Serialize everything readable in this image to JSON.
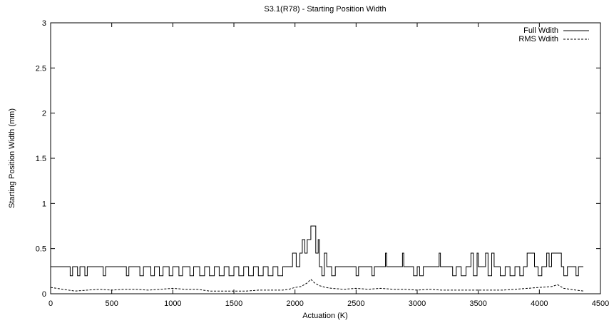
{
  "chart_data": {
    "type": "line",
    "title": "S3.1(R78) - Starting Position Width",
    "xlabel": "Actuation (K)",
    "ylabel": "Starting Position Width (mm)",
    "xlim": [
      0,
      4500
    ],
    "ylim": [
      0,
      3
    ],
    "xticks": [
      "0",
      "500",
      "1000",
      "1500",
      "2000",
      "2500",
      "3000",
      "3500",
      "4000",
      "4500"
    ],
    "yticks": [
      "0",
      "0.5",
      "1",
      "1.5",
      "2",
      "2.5",
      "3"
    ],
    "grid": false,
    "legend_position": "top-right",
    "series": [
      {
        "name": "Full Wdith",
        "style": "solid",
        "baseline": 0.3,
        "x_range": [
          0,
          4360
        ],
        "points": [
          [
            0,
            0.3
          ],
          [
            140,
            0.3
          ],
          [
            160,
            0.2
          ],
          [
            180,
            0.3
          ],
          [
            220,
            0.2
          ],
          [
            240,
            0.3
          ],
          [
            280,
            0.2
          ],
          [
            300,
            0.3
          ],
          [
            430,
            0.2
          ],
          [
            450,
            0.3
          ],
          [
            620,
            0.2
          ],
          [
            640,
            0.3
          ],
          [
            730,
            0.2
          ],
          [
            760,
            0.3
          ],
          [
            820,
            0.2
          ],
          [
            850,
            0.3
          ],
          [
            890,
            0.2
          ],
          [
            920,
            0.3
          ],
          [
            970,
            0.2
          ],
          [
            1000,
            0.3
          ],
          [
            1050,
            0.2
          ],
          [
            1080,
            0.3
          ],
          [
            1140,
            0.2
          ],
          [
            1170,
            0.3
          ],
          [
            1220,
            0.2
          ],
          [
            1260,
            0.3
          ],
          [
            1300,
            0.2
          ],
          [
            1340,
            0.3
          ],
          [
            1380,
            0.2
          ],
          [
            1420,
            0.3
          ],
          [
            1460,
            0.2
          ],
          [
            1500,
            0.3
          ],
          [
            1540,
            0.2
          ],
          [
            1580,
            0.3
          ],
          [
            1620,
            0.2
          ],
          [
            1660,
            0.3
          ],
          [
            1700,
            0.2
          ],
          [
            1740,
            0.3
          ],
          [
            1780,
            0.2
          ],
          [
            1820,
            0.3
          ],
          [
            1860,
            0.2
          ],
          [
            1900,
            0.3
          ],
          [
            1960,
            0.3
          ],
          [
            1980,
            0.45
          ],
          [
            2010,
            0.3
          ],
          [
            2040,
            0.45
          ],
          [
            2060,
            0.6
          ],
          [
            2080,
            0.45
          ],
          [
            2100,
            0.6
          ],
          [
            2130,
            0.75
          ],
          [
            2160,
            0.75
          ],
          [
            2170,
            0.45
          ],
          [
            2190,
            0.6
          ],
          [
            2200,
            0.3
          ],
          [
            2220,
            0.2
          ],
          [
            2240,
            0.45
          ],
          [
            2260,
            0.3
          ],
          [
            2300,
            0.2
          ],
          [
            2330,
            0.3
          ],
          [
            2500,
            0.2
          ],
          [
            2520,
            0.3
          ],
          [
            2630,
            0.2
          ],
          [
            2650,
            0.3
          ],
          [
            2740,
            0.45
          ],
          [
            2750,
            0.3
          ],
          [
            2880,
            0.45
          ],
          [
            2890,
            0.3
          ],
          [
            2970,
            0.2
          ],
          [
            3000,
            0.3
          ],
          [
            3020,
            0.2
          ],
          [
            3050,
            0.3
          ],
          [
            3180,
            0.45
          ],
          [
            3190,
            0.3
          ],
          [
            3290,
            0.2
          ],
          [
            3320,
            0.3
          ],
          [
            3360,
            0.2
          ],
          [
            3400,
            0.3
          ],
          [
            3440,
            0.45
          ],
          [
            3460,
            0.2
          ],
          [
            3490,
            0.45
          ],
          [
            3500,
            0.3
          ],
          [
            3560,
            0.45
          ],
          [
            3580,
            0.2
          ],
          [
            3610,
            0.45
          ],
          [
            3630,
            0.3
          ],
          [
            3680,
            0.2
          ],
          [
            3720,
            0.3
          ],
          [
            3760,
            0.2
          ],
          [
            3800,
            0.3
          ],
          [
            3840,
            0.2
          ],
          [
            3870,
            0.3
          ],
          [
            3900,
            0.45
          ],
          [
            3940,
            0.45
          ],
          [
            3960,
            0.3
          ],
          [
            3990,
            0.2
          ],
          [
            4020,
            0.3
          ],
          [
            4060,
            0.45
          ],
          [
            4080,
            0.3
          ],
          [
            4100,
            0.45
          ],
          [
            4170,
            0.45
          ],
          [
            4180,
            0.3
          ],
          [
            4200,
            0.2
          ],
          [
            4230,
            0.3
          ],
          [
            4300,
            0.2
          ],
          [
            4320,
            0.3
          ],
          [
            4360,
            0.3
          ]
        ]
      },
      {
        "name": "RMS Wdith",
        "style": "dashed",
        "x_range": [
          0,
          4360
        ],
        "points": [
          [
            0,
            0.07
          ],
          [
            100,
            0.05
          ],
          [
            200,
            0.03
          ],
          [
            300,
            0.04
          ],
          [
            400,
            0.05
          ],
          [
            500,
            0.04
          ],
          [
            600,
            0.05
          ],
          [
            700,
            0.05
          ],
          [
            800,
            0.04
          ],
          [
            900,
            0.05
          ],
          [
            1000,
            0.06
          ],
          [
            1100,
            0.05
          ],
          [
            1200,
            0.05
          ],
          [
            1300,
            0.03
          ],
          [
            1400,
            0.03
          ],
          [
            1500,
            0.03
          ],
          [
            1600,
            0.03
          ],
          [
            1700,
            0.04
          ],
          [
            1800,
            0.04
          ],
          [
            1900,
            0.04
          ],
          [
            1950,
            0.05
          ],
          [
            2000,
            0.07
          ],
          [
            2050,
            0.08
          ],
          [
            2100,
            0.12
          ],
          [
            2130,
            0.16
          ],
          [
            2160,
            0.12
          ],
          [
            2200,
            0.09
          ],
          [
            2250,
            0.07
          ],
          [
            2300,
            0.06
          ],
          [
            2400,
            0.05
          ],
          [
            2500,
            0.06
          ],
          [
            2600,
            0.05
          ],
          [
            2700,
            0.06
          ],
          [
            2800,
            0.05
          ],
          [
            2900,
            0.05
          ],
          [
            3000,
            0.04
          ],
          [
            3100,
            0.05
          ],
          [
            3200,
            0.04
          ],
          [
            3300,
            0.04
          ],
          [
            3400,
            0.04
          ],
          [
            3500,
            0.04
          ],
          [
            3600,
            0.04
          ],
          [
            3700,
            0.04
          ],
          [
            3800,
            0.05
          ],
          [
            3900,
            0.06
          ],
          [
            4000,
            0.07
          ],
          [
            4100,
            0.08
          ],
          [
            4150,
            0.1
          ],
          [
            4200,
            0.06
          ],
          [
            4300,
            0.04
          ],
          [
            4360,
            0.03
          ]
        ]
      }
    ]
  }
}
